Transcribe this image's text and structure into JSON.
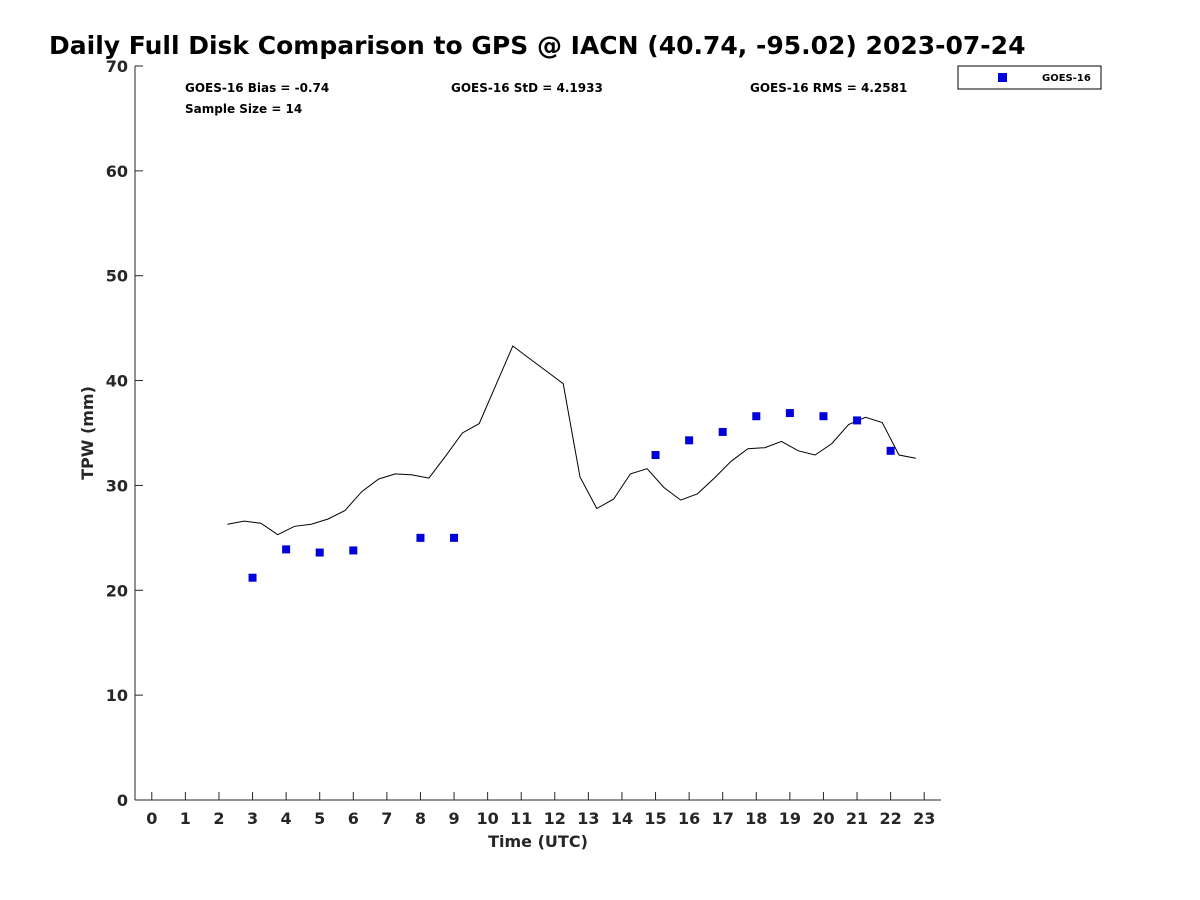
{
  "chart_data": {
    "type": "scatter",
    "title": "Daily Full Disk Comparison to GPS @ IACN (40.74, -95.02) 2023-07-24",
    "xlabel": "Time (UTC)",
    "ylabel": "TPW (mm)",
    "xlim": [
      -0.5,
      23.5
    ],
    "ylim": [
      0,
      70
    ],
    "xticks": [
      0,
      1,
      2,
      3,
      4,
      5,
      6,
      7,
      8,
      9,
      10,
      11,
      12,
      13,
      14,
      15,
      16,
      17,
      18,
      19,
      20,
      21,
      22,
      23
    ],
    "yticks": [
      0,
      10,
      20,
      30,
      40,
      50,
      60,
      70
    ],
    "grid": false,
    "legend_position": "top-right outside",
    "stats": {
      "bias": "GOES-16 Bias = -0.74",
      "std": "GOES-16 StD = 4.1933",
      "rms": "GOES-16 RMS = 4.2581",
      "sample": "Sample Size = 14"
    },
    "series": [
      {
        "name": "GOES-16",
        "kind": "scatter",
        "marker": "square",
        "color": "#0000dd",
        "points": [
          [
            3,
            21.2
          ],
          [
            4,
            23.9
          ],
          [
            5,
            23.6
          ],
          [
            6,
            23.8
          ],
          [
            8,
            25.0
          ],
          [
            9,
            25.0
          ],
          [
            15,
            32.9
          ],
          [
            16,
            34.3
          ],
          [
            17,
            35.1
          ],
          [
            18,
            36.6
          ],
          [
            19,
            36.9
          ],
          [
            20,
            36.6
          ],
          [
            21,
            36.2
          ],
          [
            22,
            33.3
          ]
        ]
      },
      {
        "kind": "line",
        "color": "#000000",
        "points": [
          [
            2.25,
            26.3
          ],
          [
            2.75,
            26.6
          ],
          [
            3.25,
            26.4
          ],
          [
            3.75,
            25.3
          ],
          [
            4.25,
            26.1
          ],
          [
            4.75,
            26.3
          ],
          [
            5.25,
            26.8
          ],
          [
            5.75,
            27.6
          ],
          [
            6.25,
            29.4
          ],
          [
            6.75,
            30.6
          ],
          [
            7.25,
            31.1
          ],
          [
            7.75,
            31.0
          ],
          [
            8.25,
            30.7
          ],
          [
            8.75,
            32.8
          ],
          [
            9.25,
            35.0
          ],
          [
            9.75,
            35.9
          ],
          [
            10.25,
            39.6
          ],
          [
            10.75,
            43.3
          ],
          [
            11.25,
            42.1
          ],
          [
            11.75,
            40.9
          ],
          [
            12.25,
            39.7
          ],
          [
            12.75,
            30.8
          ],
          [
            13.25,
            27.8
          ],
          [
            13.75,
            28.7
          ],
          [
            14.25,
            31.1
          ],
          [
            14.75,
            31.6
          ],
          [
            15.25,
            29.8
          ],
          [
            15.75,
            28.6
          ],
          [
            16.25,
            29.2
          ],
          [
            16.75,
            30.7
          ],
          [
            17.25,
            32.3
          ],
          [
            17.75,
            33.5
          ],
          [
            18.25,
            33.6
          ],
          [
            18.75,
            34.2
          ],
          [
            19.25,
            33.3
          ],
          [
            19.75,
            32.9
          ],
          [
            20.25,
            34.0
          ],
          [
            20.75,
            35.8
          ],
          [
            21.25,
            36.5
          ],
          [
            21.75,
            36.0
          ],
          [
            22.25,
            32.9
          ],
          [
            22.75,
            32.6
          ]
        ]
      }
    ]
  }
}
